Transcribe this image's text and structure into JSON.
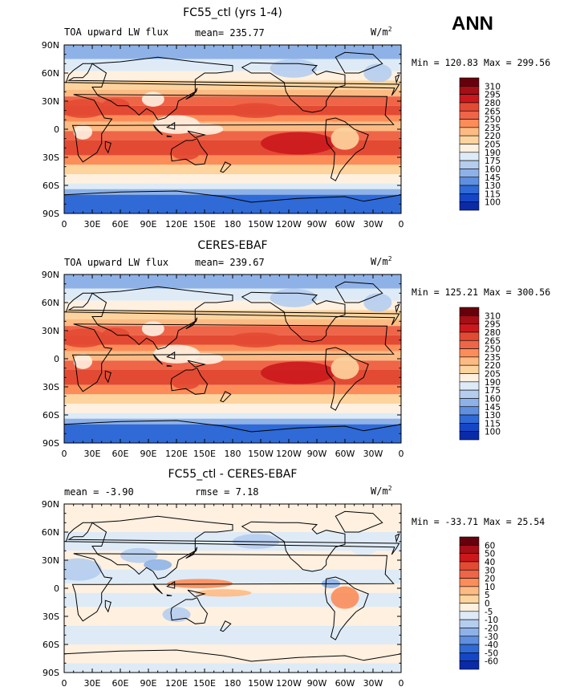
{
  "season": "ANN",
  "unit_base": "W/m",
  "unit_exp": "2",
  "chart_data": [
    {
      "type": "heatmap",
      "title": "FC55_ctl (yrs 1-4)",
      "left_label": "TOA upward LW flux",
      "center_label": "mean= 235.77",
      "min_text": "Min = 120.83",
      "max_text": "Max = 299.56",
      "min": 120.83,
      "max": 299.56,
      "colorbar_levels": [
        "310",
        "295",
        "280",
        "265",
        "250",
        "235",
        "220",
        "205",
        "190",
        "175",
        "160",
        "145",
        "130",
        "115",
        "100"
      ],
      "colorbar_colors": [
        "#67000d",
        "#a50f15",
        "#cb181d",
        "#e34a33",
        "#ef6548",
        "#fc8d59",
        "#fdbb84",
        "#fdd49e",
        "#fff0e0",
        "#deebf7",
        "#b5cdee",
        "#8eb2e8",
        "#5e8fe0",
        "#2f6ad6",
        "#1446c8",
        "#0a2aa8"
      ],
      "x_ticks": [
        "0",
        "30E",
        "60E",
        "90E",
        "120E",
        "150E",
        "180",
        "150W",
        "120W",
        "90W",
        "60W",
        "30W",
        "0"
      ],
      "y_ticks": [
        "90N",
        "60N",
        "30N",
        "0",
        "30S",
        "60S",
        "90S"
      ],
      "xlim": [
        0,
        360
      ],
      "ylim": [
        -90,
        90
      ]
    },
    {
      "type": "heatmap",
      "title": "CERES-EBAF",
      "left_label": "TOA upward LW flux",
      "center_label": "mean= 239.67",
      "min_text": "Min = 125.21",
      "max_text": "Max = 300.56",
      "min": 125.21,
      "max": 300.56,
      "colorbar_levels": [
        "310",
        "295",
        "280",
        "265",
        "250",
        "235",
        "220",
        "205",
        "190",
        "175",
        "160",
        "145",
        "130",
        "115",
        "100"
      ],
      "colorbar_colors": [
        "#67000d",
        "#a50f15",
        "#cb181d",
        "#e34a33",
        "#ef6548",
        "#fc8d59",
        "#fdbb84",
        "#fdd49e",
        "#fff0e0",
        "#deebf7",
        "#b5cdee",
        "#8eb2e8",
        "#5e8fe0",
        "#2f6ad6",
        "#1446c8",
        "#0a2aa8"
      ],
      "x_ticks": [
        "0",
        "30E",
        "60E",
        "90E",
        "120E",
        "150E",
        "180",
        "150W",
        "120W",
        "90W",
        "60W",
        "30W",
        "0"
      ],
      "y_ticks": [
        "90N",
        "60N",
        "30N",
        "0",
        "30S",
        "60S",
        "90S"
      ],
      "xlim": [
        0,
        360
      ],
      "ylim": [
        -90,
        90
      ]
    },
    {
      "type": "heatmap",
      "title": "FC55_ctl - CERES-EBAF",
      "left_label": "mean =  -3.90",
      "center_label": "rmse =   7.18",
      "min_text": "Min = -33.71",
      "max_text": "Max =  25.54",
      "min": -33.71,
      "max": 25.54,
      "colorbar_levels": [
        "60",
        "50",
        "40",
        "30",
        "20",
        "10",
        "5",
        "0",
        "-5",
        "-10",
        "-20",
        "-30",
        "-40",
        "-50",
        "-60"
      ],
      "colorbar_colors": [
        "#67000d",
        "#a50f15",
        "#cb181d",
        "#e34a33",
        "#ef6548",
        "#fc8d59",
        "#fdbb84",
        "#fdd49e",
        "#fff0e0",
        "#deebf7",
        "#b5cdee",
        "#8eb2e8",
        "#5e8fe0",
        "#2f6ad6",
        "#1446c8",
        "#0a2aa8"
      ],
      "x_ticks": [
        "0",
        "30E",
        "60E",
        "90E",
        "120E",
        "150E",
        "180",
        "150W",
        "120W",
        "90W",
        "60W",
        "30W",
        "0"
      ],
      "y_ticks": [
        "90N",
        "60N",
        "30N",
        "0",
        "30S",
        "60S",
        "90S"
      ],
      "xlim": [
        0,
        360
      ],
      "ylim": [
        -90,
        90
      ]
    }
  ]
}
